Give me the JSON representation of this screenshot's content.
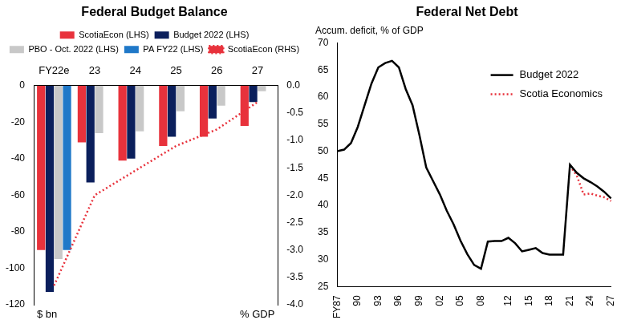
{
  "chart_data": [
    {
      "type": "bar",
      "title": "Federal Budget Balance",
      "categories": [
        "FY22e",
        "23",
        "24",
        "25",
        "26",
        "27"
      ],
      "series": [
        {
          "name": "ScotiaEcon (LHS)",
          "type": "bar",
          "color": "#e8323c",
          "values": [
            -90,
            -31,
            -41,
            -33,
            -28,
            -22
          ]
        },
        {
          "name": "Budget 2022 (LHS)",
          "type": "bar",
          "color": "#0b1f5c",
          "values": [
            -113,
            -53,
            -40,
            -28,
            -18,
            -9
          ]
        },
        {
          "name": "PBO - Oct. 2022 (LHS)",
          "type": "bar",
          "color": "#c8c8c8",
          "values": [
            -95,
            -26,
            -25,
            -14,
            -11,
            -3
          ]
        },
        {
          "name": "PA FY22 (LHS)",
          "type": "bar",
          "color": "#1f78c8",
          "values": [
            -90,
            null,
            null,
            null,
            null,
            null
          ]
        },
        {
          "name": "ScotiaEcon (RHS)",
          "type": "line",
          "axis": "y2",
          "color": "#e8323c",
          "line_style": "dotted",
          "values": [
            -3.65,
            -2.0,
            -1.55,
            -1.1,
            -0.8,
            -0.3
          ]
        }
      ],
      "ylim": [
        -120,
        0
      ],
      "yticks": [
        -120,
        -100,
        -80,
        -60,
        -40,
        -20,
        0
      ],
      "y2lim": [
        -4,
        0
      ],
      "y2ticks": [
        {
          "value": -4,
          "label": "-4.0"
        },
        -3.5,
        {
          "value": -3,
          "label": "-3.0"
        },
        -2.5,
        {
          "value": -2,
          "label": "-2.0"
        },
        -1.5,
        {
          "value": -1,
          "label": "-1.0"
        },
        -0.5,
        {
          "value": 0,
          "label": "0.0"
        }
      ],
      "ylabel": "$ bn",
      "y2label": "% GDP",
      "grid": false,
      "legend": "top"
    },
    {
      "type": "line",
      "title": "Federal Net Debt",
      "ylabel": "Accum. deficit, % of GDP",
      "categories": [
        "FY87",
        null,
        null,
        "90",
        null,
        null,
        "93",
        null,
        null,
        "96",
        null,
        null,
        "99",
        null,
        null,
        "02",
        null,
        null,
        "05",
        null,
        null,
        "08",
        null,
        null,
        null,
        "12",
        null,
        null,
        "15",
        null,
        null,
        "18",
        null,
        null,
        "21",
        null,
        null,
        "24",
        null,
        null,
        "27"
      ],
      "series": [
        {
          "name": "Budget 2022",
          "color": "#000000",
          "line_style": "solid",
          "values": [
            50,
            50.3,
            51.5,
            54.5,
            58.5,
            62.5,
            65.5,
            66.3,
            66.7,
            65.5,
            61.5,
            58.5,
            53,
            47,
            44.5,
            42,
            39,
            36.5,
            33.5,
            31,
            29,
            28.3,
            33.3,
            33.4,
            33.4,
            34,
            33,
            31.5,
            31.8,
            32.1,
            31.2,
            30.9,
            30.9,
            30.9,
            47.5,
            46,
            45,
            44.3,
            43.5,
            42.5,
            41.3
          ]
        },
        {
          "name": "Scotia Economics",
          "color": "#e8323c",
          "line_style": "dotted",
          "values": [
            null,
            null,
            null,
            null,
            null,
            null,
            null,
            null,
            null,
            null,
            null,
            null,
            null,
            null,
            null,
            null,
            null,
            null,
            null,
            null,
            null,
            null,
            null,
            null,
            null,
            null,
            null,
            null,
            null,
            null,
            null,
            null,
            null,
            null,
            47.3,
            45.5,
            42,
            42.2,
            41.8,
            41.5,
            40.8
          ]
        }
      ],
      "ylim": [
        25,
        70
      ],
      "yticks": [
        25,
        30,
        35,
        40,
        45,
        50,
        55,
        60,
        65,
        70
      ],
      "grid": false,
      "legend": "top-right"
    }
  ]
}
